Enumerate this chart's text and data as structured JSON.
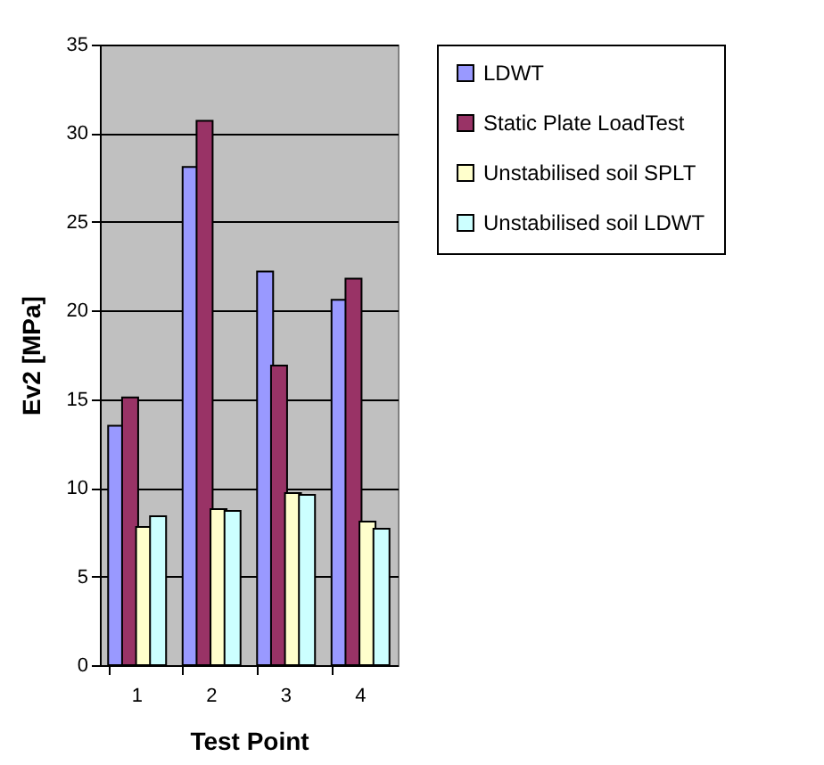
{
  "chart_data": {
    "type": "bar",
    "xlabel": "Test Point",
    "ylabel": "Ev2 [MPa]",
    "categories": [
      "1",
      "2",
      "3",
      "4"
    ],
    "series": [
      {
        "name": "LDWT",
        "color": "#9999ff",
        "values": [
          13.5,
          28.1,
          22.2,
          20.6
        ]
      },
      {
        "name": "Static Plate LoadTest",
        "color": "#993366",
        "values": [
          15.1,
          30.7,
          16.9,
          21.8
        ]
      },
      {
        "name": "Unstabilised soil SPLT",
        "color": "#ffffcc",
        "values": [
          7.8,
          8.8,
          9.7,
          8.1
        ]
      },
      {
        "name": "Unstabilised soil LDWT",
        "color": "#ccffff",
        "values": [
          8.4,
          8.7,
          9.6,
          7.7
        ]
      }
    ],
    "ylim": [
      0,
      35
    ],
    "yticks": [
      0,
      5,
      10,
      15,
      20,
      25,
      30,
      35
    ],
    "grid": "y",
    "legend": "right"
  }
}
